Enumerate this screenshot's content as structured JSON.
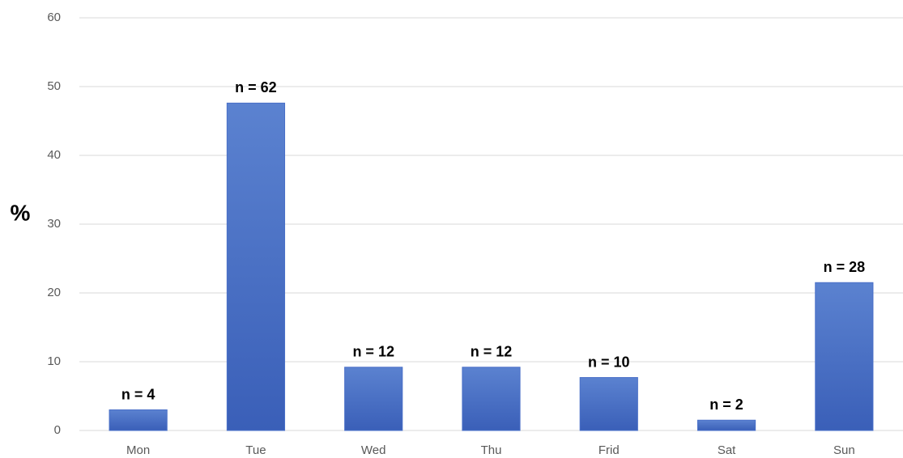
{
  "chart_data": {
    "type": "bar",
    "y_label": "%",
    "categories": [
      "Mon",
      "Tue",
      "Wed",
      "Thu",
      "Frid",
      "Sat",
      "Sun"
    ],
    "values": [
      3.0,
      47.6,
      9.2,
      9.2,
      7.7,
      1.5,
      21.5
    ],
    "annotations": [
      "n = 4",
      "n = 62",
      "n = 12",
      "n = 12",
      "n = 10",
      "n = 2",
      "n = 28"
    ],
    "color": "#4a70c8",
    "ylim": [
      0,
      60
    ],
    "yticks": [
      0,
      10,
      20,
      30,
      40,
      50,
      60
    ],
    "grid": true
  }
}
